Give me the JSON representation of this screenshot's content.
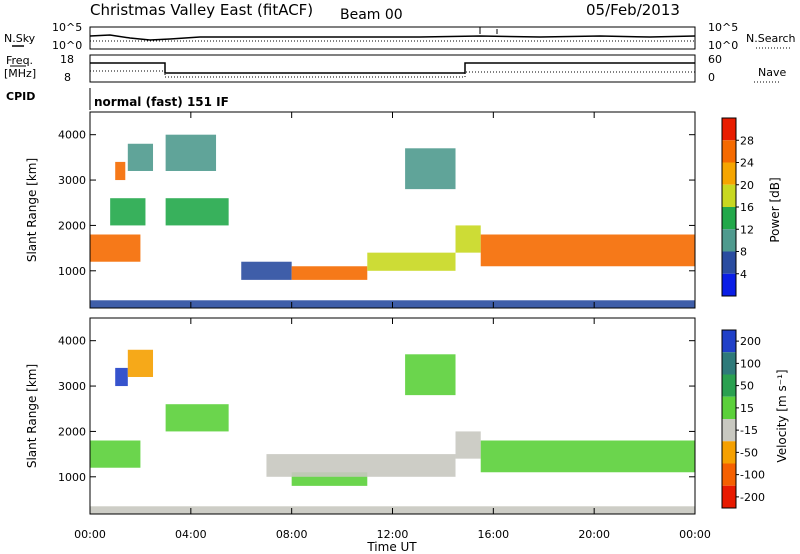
{
  "header": {
    "title": "Christmas Valley East (fitACF)",
    "beam": "Beam 00",
    "date": "05/Feb/2013"
  },
  "top_panels": {
    "nsky_label": "N.Sky",
    "nsearch_label": "N.Search",
    "noise_ticks": [
      "10^5",
      "10^0"
    ],
    "freq_label": "Freq.",
    "freq_unit": "[MHz]",
    "freq_ticks": [
      "18",
      "8"
    ],
    "nave_label": "Nave",
    "nave_ticks": [
      "60",
      "0"
    ],
    "cpid_label": "CPID",
    "cpid_value": "normal (fast) 151 IF"
  },
  "axes": {
    "ylabel": "Slant Range [km]",
    "xlabel": "Time UT",
    "yticks": [
      "1000",
      "2000",
      "3000",
      "4000"
    ],
    "xticks": [
      "00:00",
      "04:00",
      "08:00",
      "12:00",
      "16:00",
      "20:00",
      "00:00"
    ]
  },
  "power_scale": {
    "label": "Power [dB]",
    "ticks": [
      "4",
      "8",
      "12",
      "16",
      "20",
      "24",
      "28"
    ],
    "colors": [
      "#0a1ee6",
      "#2a4ca0",
      "#4f9a8e",
      "#22a84a",
      "#c8d820",
      "#f5a500",
      "#f56a00",
      "#e81c00"
    ]
  },
  "velocity_scale": {
    "label": "Velocity [m s⁻¹]",
    "ticks": [
      "200",
      "100",
      "50",
      "15",
      "-15",
      "-50",
      "-100",
      "-200"
    ],
    "colors": [
      "#2040c8",
      "#2e7a7a",
      "#2aa050",
      "#5bd03a",
      "#c8c8c0",
      "#f5a000",
      "#f56000",
      "#e81a00"
    ]
  },
  "chart_data": [
    {
      "type": "heatmap",
      "name": "Power",
      "x_unit": "hours UT",
      "xlim": [
        0,
        24
      ],
      "y_unit": "km",
      "ylim": [
        180,
        4500
      ],
      "bands": [
        {
          "t": [
            0,
            2
          ],
          "range": [
            1200,
            1800
          ],
          "value_db": 24
        },
        {
          "t": [
            0.8,
            2.2
          ],
          "range": [
            2000,
            2600
          ],
          "value_db": 14
        },
        {
          "t": [
            1.0,
            1.4
          ],
          "range": [
            3000,
            3400
          ],
          "value_db": 26
        },
        {
          "t": [
            1.5,
            2.5
          ],
          "range": [
            3200,
            3800
          ],
          "value_db": 10
        },
        {
          "t": [
            3,
            5.5
          ],
          "range": [
            2000,
            2600
          ],
          "value_db": 14
        },
        {
          "t": [
            3,
            5
          ],
          "range": [
            3200,
            4000
          ],
          "value_db": 10
        },
        {
          "t": [
            6,
            8
          ],
          "range": [
            800,
            1200
          ],
          "value_db": 6
        },
        {
          "t": [
            8,
            11
          ],
          "range": [
            800,
            1100
          ],
          "value_db": 26
        },
        {
          "t": [
            11,
            14.5
          ],
          "range": [
            1000,
            1400
          ],
          "value_db": 16
        },
        {
          "t": [
            12.5,
            14.5
          ],
          "range": [
            2800,
            3700
          ],
          "value_db": 8
        },
        {
          "t": [
            14.5,
            15.5
          ],
          "range": [
            1400,
            2000
          ],
          "value_db": 18
        },
        {
          "t": [
            15.5,
            24
          ],
          "range": [
            1100,
            1800
          ],
          "value_db": 26
        },
        {
          "t": [
            0,
            24
          ],
          "range": [
            180,
            350
          ],
          "value_db": 4
        }
      ]
    },
    {
      "type": "heatmap",
      "name": "Velocity",
      "x_unit": "hours UT",
      "xlim": [
        0,
        24
      ],
      "y_unit": "km",
      "ylim": [
        180,
        4500
      ],
      "bands": [
        {
          "t": [
            0,
            2
          ],
          "range": [
            1200,
            1800
          ],
          "value_ms": 0
        },
        {
          "t": [
            1.0,
            1.5
          ],
          "range": [
            3000,
            3400
          ],
          "value_ms": 150
        },
        {
          "t": [
            1.5,
            2.5
          ],
          "range": [
            3200,
            3800
          ],
          "value_ms": -60
        },
        {
          "t": [
            3,
            5.5
          ],
          "range": [
            2000,
            2600
          ],
          "value_ms": 0
        },
        {
          "t": [
            8,
            11
          ],
          "range": [
            800,
            1100
          ],
          "value_ms": 0
        },
        {
          "t": [
            7,
            14.5
          ],
          "range": [
            1000,
            1500
          ],
          "value_ms": -30
        },
        {
          "t": [
            12.5,
            14.5
          ],
          "range": [
            2800,
            3700
          ],
          "value_ms": 0
        },
        {
          "t": [
            14.5,
            15.5
          ],
          "range": [
            1400,
            2000
          ],
          "value_ms": -20
        },
        {
          "t": [
            15.5,
            24
          ],
          "range": [
            1100,
            1800
          ],
          "value_ms": 0
        },
        {
          "t": [
            0,
            24
          ],
          "range": [
            180,
            350
          ],
          "value_ms": -40
        }
      ]
    }
  ]
}
